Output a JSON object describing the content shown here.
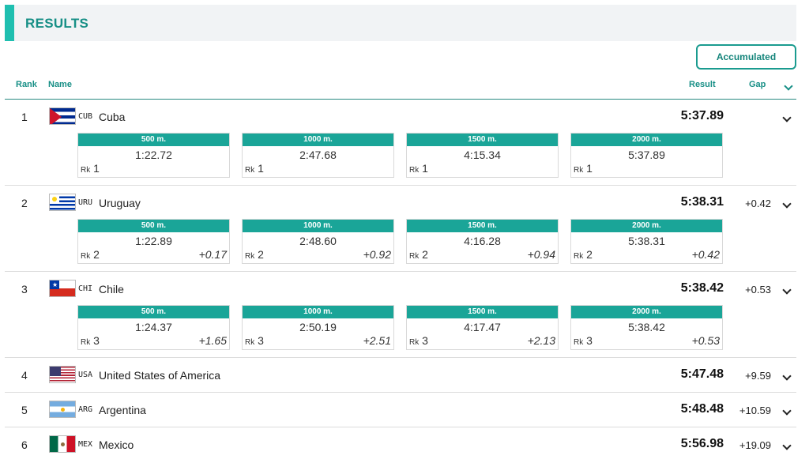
{
  "header": {
    "title": "RESULTS"
  },
  "toolbar": {
    "accumulated_label": "Accumulated"
  },
  "columns": {
    "rank": "Rank",
    "name": "Name",
    "result": "Result",
    "gap": "Gap"
  },
  "split_labels": [
    "500 m.",
    "1000 m.",
    "1500 m.",
    "2000 m."
  ],
  "rank_prefix": "Rk",
  "rows": [
    {
      "rank": "1",
      "code": "CUB",
      "country": "Cuba",
      "result": "5:37.89",
      "gap": "",
      "splits": [
        {
          "time": "1:22.72",
          "rank": "1",
          "gap": ""
        },
        {
          "time": "2:47.68",
          "rank": "1",
          "gap": ""
        },
        {
          "time": "4:15.34",
          "rank": "1",
          "gap": ""
        },
        {
          "time": "5:37.89",
          "rank": "1",
          "gap": ""
        }
      ]
    },
    {
      "rank": "2",
      "code": "URU",
      "country": "Uruguay",
      "result": "5:38.31",
      "gap": "+0.42",
      "splits": [
        {
          "time": "1:22.89",
          "rank": "2",
          "gap": "+0.17"
        },
        {
          "time": "2:48.60",
          "rank": "2",
          "gap": "+0.92"
        },
        {
          "time": "4:16.28",
          "rank": "2",
          "gap": "+0.94"
        },
        {
          "time": "5:38.31",
          "rank": "2",
          "gap": "+0.42"
        }
      ]
    },
    {
      "rank": "3",
      "code": "CHI",
      "country": "Chile",
      "result": "5:38.42",
      "gap": "+0.53",
      "splits": [
        {
          "time": "1:24.37",
          "rank": "3",
          "gap": "+1.65"
        },
        {
          "time": "2:50.19",
          "rank": "3",
          "gap": "+2.51"
        },
        {
          "time": "4:17.47",
          "rank": "3",
          "gap": "+2.13"
        },
        {
          "time": "5:38.42",
          "rank": "3",
          "gap": "+0.53"
        }
      ]
    },
    {
      "rank": "4",
      "code": "USA",
      "country": "United States of America",
      "result": "5:47.48",
      "gap": "+9.59"
    },
    {
      "rank": "5",
      "code": "ARG",
      "country": "Argentina",
      "result": "5:48.48",
      "gap": "+10.59"
    },
    {
      "rank": "6",
      "code": "MEX",
      "country": "Mexico",
      "result": "5:56.98",
      "gap": "+19.09"
    }
  ],
  "colors": {
    "accent": "#1aa598",
    "title": "#178f86"
  }
}
